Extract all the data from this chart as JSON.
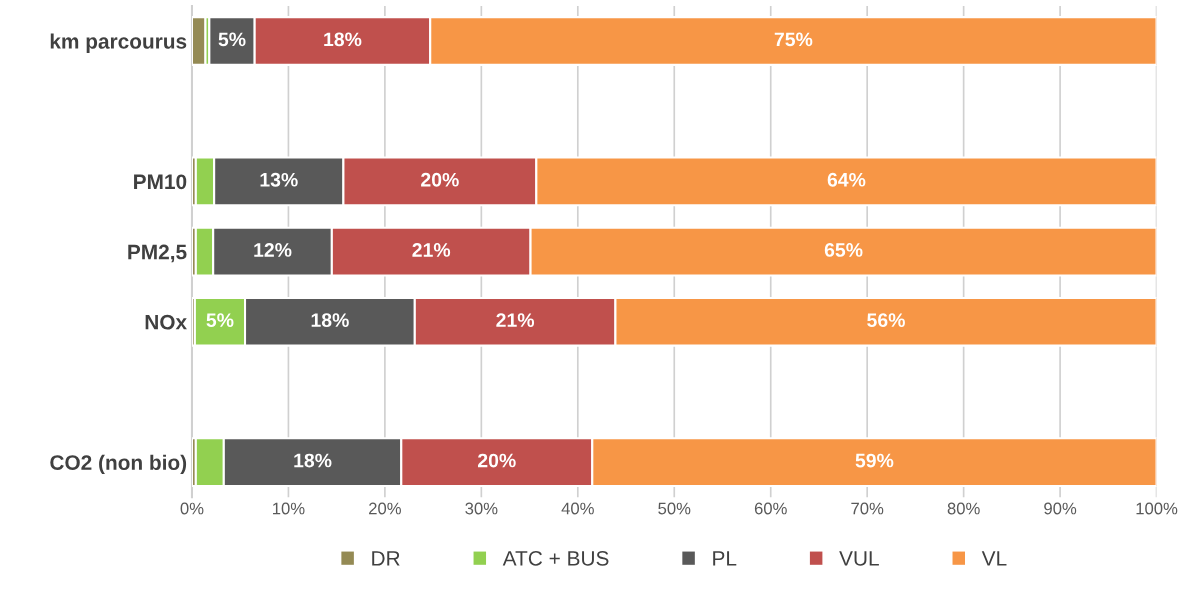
{
  "chart_data": {
    "type": "bar",
    "orientation": "horizontal",
    "stacked": true,
    "categories": [
      "km parcourus",
      null,
      "PM10",
      "PM2,5",
      "NOx",
      null,
      "CO2 (non bio)"
    ],
    "series": [
      {
        "name": "DR",
        "color": "#948a54",
        "values": [
          1.4,
          null,
          0.4,
          0.4,
          0.3,
          null,
          0.4
        ],
        "value_labels": [
          null,
          null,
          null,
          null,
          null,
          null,
          null
        ]
      },
      {
        "name": "ATC + BUS",
        "color": "#92d050",
        "values": [
          0.4,
          null,
          1.9,
          1.8,
          5.2,
          null,
          2.9
        ],
        "value_labels": [
          null,
          null,
          null,
          null,
          "5%",
          null,
          null
        ]
      },
      {
        "name": "PL",
        "color": "#595959",
        "values": [
          4.7,
          null,
          13.4,
          12.3,
          17.6,
          null,
          18.4
        ],
        "value_labels": [
          "5%",
          null,
          "13%",
          "12%",
          "18%",
          null,
          "18%"
        ]
      },
      {
        "name": "VUL",
        "color": "#c0504d",
        "values": [
          18.2,
          null,
          20.0,
          20.6,
          20.8,
          null,
          19.8
        ],
        "value_labels": [
          "18%",
          null,
          "20%",
          "21%",
          "21%",
          null,
          "20%"
        ]
      },
      {
        "name": "VL",
        "color": "#f79646",
        "values": [
          75.3,
          null,
          64.3,
          64.9,
          56.1,
          null,
          58.5
        ],
        "value_labels": [
          "75%",
          null,
          "64%",
          "65%",
          "56%",
          null,
          "59%"
        ]
      }
    ],
    "xlim": [
      0,
      100
    ],
    "xticks": [
      {
        "value": 0,
        "label": "0%"
      },
      {
        "value": 10,
        "label": "10%"
      },
      {
        "value": 20,
        "label": "20%"
      },
      {
        "value": 30,
        "label": "30%"
      },
      {
        "value": 40,
        "label": "40%"
      },
      {
        "value": 50,
        "label": "50%"
      },
      {
        "value": 60,
        "label": "60%"
      },
      {
        "value": 70,
        "label": "70%"
      },
      {
        "value": 80,
        "label": "80%"
      },
      {
        "value": 90,
        "label": "90%"
      },
      {
        "value": 100,
        "label": "100%"
      }
    ],
    "grid": "x",
    "legend": "bottom"
  }
}
